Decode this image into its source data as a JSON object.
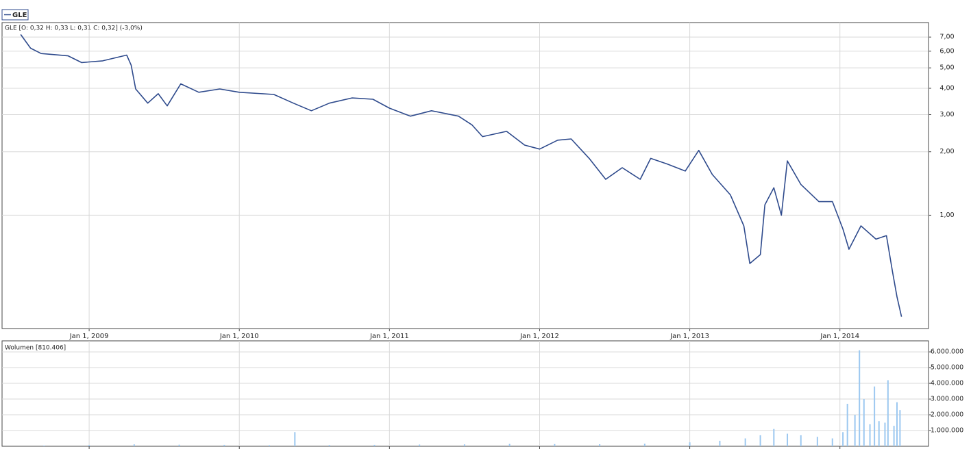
{
  "chart_data": [
    {
      "type": "line",
      "info": "GLE [O: 0,32  H: 0,33  L: 0,31  C: 0,32] (-3,0%)",
      "log_scale": true,
      "grid": true,
      "xlim": [
        2008.42,
        2014.59
      ],
      "ylim": [
        0.29,
        8.2
      ],
      "xticks": [
        {
          "value": 2009,
          "label": "Jan 1, 2009"
        },
        {
          "value": 2010,
          "label": "Jan 1, 2010"
        },
        {
          "value": 2011,
          "label": "Jan 1, 2011"
        },
        {
          "value": 2012,
          "label": "Jan 1, 2012"
        },
        {
          "value": 2013,
          "label": "Jan 1, 2013"
        },
        {
          "value": 2014,
          "label": "Jan 1, 2014"
        }
      ],
      "yticks": [
        {
          "value": 1,
          "label": "1,00"
        },
        {
          "value": 2,
          "label": "2,00"
        },
        {
          "value": 3,
          "label": "3,00"
        },
        {
          "value": 4,
          "label": "4,00"
        },
        {
          "value": 5,
          "label": "5,00"
        },
        {
          "value": 6,
          "label": "6,00"
        },
        {
          "value": 7,
          "label": "7,00"
        }
      ],
      "x": [
        2008.544,
        2008.61,
        2008.68,
        2008.86,
        2008.95,
        2009.09,
        2009.25,
        2009.28,
        2009.31,
        2009.39,
        2009.46,
        2009.52,
        2009.61,
        2009.73,
        2009.87,
        2010.0,
        2010.23,
        2010.36,
        2010.48,
        2010.6,
        2010.75,
        2010.89,
        2011.0,
        2011.14,
        2011.28,
        2011.46,
        2011.55,
        2011.62,
        2011.78,
        2011.9,
        2012.0,
        2012.12,
        2012.21,
        2012.33,
        2012.44,
        2012.55,
        2012.67,
        2012.74,
        2012.85,
        2012.97,
        2013.06,
        2013.15,
        2013.27,
        2013.36,
        2013.4,
        2013.47,
        2013.5,
        2013.56,
        2013.61,
        2013.65,
        2013.74,
        2013.86,
        2013.95,
        2014.02,
        2014.06,
        2014.14,
        2014.24,
        2014.31,
        2014.35,
        2014.38,
        2014.41
      ],
      "series": [
        {
          "name": "GLE",
          "color": "#2e4a8c",
          "values": [
            7.2,
            6.2,
            5.85,
            5.7,
            5.3,
            5.4,
            5.75,
            5.15,
            3.97,
            3.4,
            3.77,
            3.3,
            4.2,
            3.83,
            3.97,
            3.83,
            3.74,
            3.4,
            3.13,
            3.4,
            3.6,
            3.55,
            3.22,
            2.95,
            3.13,
            2.95,
            2.68,
            2.36,
            2.5,
            2.15,
            2.06,
            2.27,
            2.3,
            1.86,
            1.48,
            1.68,
            1.48,
            1.86,
            1.75,
            1.62,
            2.03,
            1.56,
            1.25,
            0.89,
            0.59,
            0.65,
            1.12,
            1.35,
            1.0,
            1.81,
            1.4,
            1.16,
            1.16,
            0.86,
            0.69,
            0.89,
            0.77,
            0.8,
            0.54,
            0.41,
            0.33
          ]
        }
      ]
    },
    {
      "type": "bar",
      "title": "Wolumen [810.406]",
      "grid": true,
      "xlim": [
        2008.42,
        2014.59
      ],
      "ylim": [
        0,
        6700000
      ],
      "xticks": [
        2009,
        2010,
        2011,
        2012,
        2013,
        2014
      ],
      "yticks": [
        {
          "value": 1000000,
          "label": "1.000.000"
        },
        {
          "value": 2000000,
          "label": "2.000.000"
        },
        {
          "value": 3000000,
          "label": "3.000.000"
        },
        {
          "value": 4000000,
          "label": "4.000.000"
        },
        {
          "value": 5000000,
          "label": "5.000.000"
        },
        {
          "value": 6000000,
          "label": "6.000.000"
        }
      ],
      "x": [
        2008.7,
        2009.0,
        2009.3,
        2009.6,
        2009.9,
        2010.2,
        2010.37,
        2010.6,
        2010.9,
        2011.2,
        2011.5,
        2011.8,
        2012.1,
        2012.4,
        2012.7,
        2013.0,
        2013.2,
        2013.37,
        2013.47,
        2013.56,
        2013.65,
        2013.74,
        2013.85,
        2013.95,
        2014.02,
        2014.05,
        2014.1,
        2014.13,
        2014.16,
        2014.2,
        2014.23,
        2014.26,
        2014.3,
        2014.32,
        2014.36,
        2014.38,
        2014.4
      ],
      "series": [
        {
          "name": "Wolumen",
          "color": "#9cc8f0",
          "values": [
            50000,
            80000,
            120000,
            100000,
            90000,
            70000,
            900000,
            80000,
            90000,
            110000,
            120000,
            150000,
            140000,
            130000,
            160000,
            250000,
            350000,
            500000,
            700000,
            1100000,
            800000,
            700000,
            600000,
            500000,
            900000,
            2700000,
            2000000,
            6100000,
            3000000,
            1400000,
            3800000,
            1600000,
            1500000,
            4200000,
            1300000,
            2800000,
            2300000
          ]
        }
      ]
    }
  ]
}
